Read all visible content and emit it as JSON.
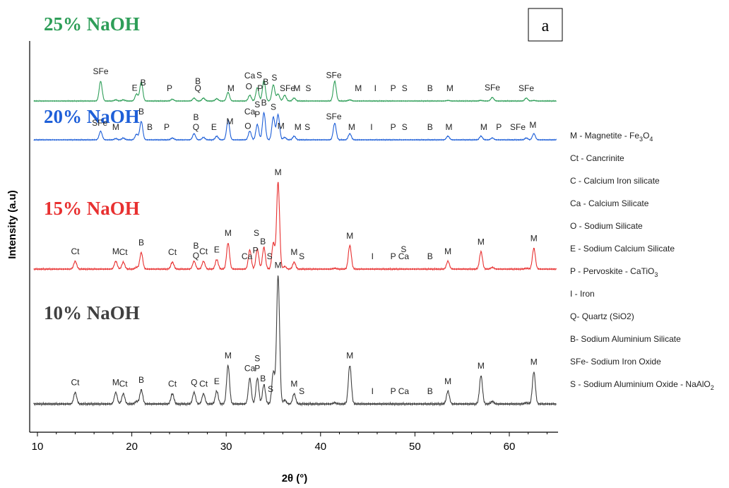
{
  "chart_data": {
    "type": "line",
    "panel_label": "a",
    "xlabel": "2θ (°)",
    "ylabel": "Intensity (a.u)",
    "xlim": [
      9.5,
      65
    ],
    "xticks": [
      10,
      20,
      30,
      40,
      50,
      60
    ],
    "grid": false,
    "legend_position": "right",
    "peak_positions": [
      14.0,
      16.7,
      18.3,
      19.1,
      20.5,
      21.0,
      24.3,
      26.6,
      27.6,
      29.0,
      30.2,
      32.5,
      33.3,
      34.0,
      35.0,
      35.5,
      36.2,
      37.2,
      41.5,
      43.1,
      53.5,
      57.0,
      58.2,
      61.8,
      62.6
    ],
    "series": [
      {
        "name": "10% NaOH",
        "color": "#404040",
        "baseline": 0.0,
        "peaks": [
          0.9,
          0.0,
          0.9,
          0.8,
          0.2,
          1.1,
          0.8,
          0.9,
          0.8,
          1.0,
          3.0,
          2.0,
          2.0,
          1.5,
          2.5,
          10.0,
          0.3,
          0.8,
          0.1,
          3.0,
          1.0,
          2.2,
          0.2,
          0.1,
          2.5
        ],
        "annotations": [
          {
            "text": "Ct",
            "x": 14.0
          },
          {
            "text": "M",
            "x": 18.3
          },
          {
            "text": "Ct",
            "x": 19.1
          },
          {
            "text": "B",
            "x": 21.0
          },
          {
            "text": "Ct",
            "x": 24.3
          },
          {
            "text": "Q",
            "x": 26.6
          },
          {
            "text": "Ct",
            "x": 27.6
          },
          {
            "text": "E",
            "x": 29.0
          },
          {
            "text": "M",
            "x": 30.2
          },
          {
            "text": "Ca",
            "x": 32.5
          },
          {
            "text": "P",
            "x": 33.3
          },
          {
            "text": "S",
            "x": 33.3
          },
          {
            "text": "B",
            "x": 33.9
          },
          {
            "text": "S",
            "x": 34.7
          },
          {
            "text": "M",
            "x": 35.5
          },
          {
            "text": "M",
            "x": 37.2
          },
          {
            "text": "S",
            "x": 38.0
          },
          {
            "text": "M",
            "x": 43.1
          },
          {
            "text": "I",
            "x": 45.5
          },
          {
            "text": "P",
            "x": 47.7
          },
          {
            "text": "Ca",
            "x": 48.8
          },
          {
            "text": "B",
            "x": 51.6
          },
          {
            "text": "M",
            "x": 53.5
          },
          {
            "text": "M",
            "x": 57.0
          },
          {
            "text": "M",
            "x": 62.6
          }
        ]
      },
      {
        "name": "15% NaOH",
        "color": "#e83030",
        "baseline": 1.0,
        "peaks": [
          0.9,
          0.0,
          0.9,
          0.8,
          0.2,
          1.9,
          0.8,
          0.9,
          0.9,
          1.1,
          3.0,
          2.2,
          2.3,
          2.5,
          3.0,
          10.0,
          0.3,
          0.8,
          0.1,
          2.7,
          0.9,
          2.0,
          0.2,
          0.1,
          2.4
        ],
        "annotations": [
          {
            "text": "Ct",
            "x": 14.0
          },
          {
            "text": "M",
            "x": 18.3
          },
          {
            "text": "Ct",
            "x": 19.1
          },
          {
            "text": "B",
            "x": 21.0
          },
          {
            "text": "Ct",
            "x": 24.3
          },
          {
            "text": "Q",
            "x": 26.8
          },
          {
            "text": "B",
            "x": 26.8
          },
          {
            "text": "Ct",
            "x": 27.6
          },
          {
            "text": "E",
            "x": 29.0
          },
          {
            "text": "M",
            "x": 30.2
          },
          {
            "text": "Ca",
            "x": 32.2
          },
          {
            "text": "P",
            "x": 33.1
          },
          {
            "text": "S",
            "x": 33.2
          },
          {
            "text": "B",
            "x": 33.9
          },
          {
            "text": "S",
            "x": 34.6
          },
          {
            "text": "M",
            "x": 35.5
          },
          {
            "text": "M",
            "x": 37.2
          },
          {
            "text": "S",
            "x": 38.0
          },
          {
            "text": "M",
            "x": 43.1
          },
          {
            "text": "I",
            "x": 45.5
          },
          {
            "text": "P",
            "x": 47.7
          },
          {
            "text": "Ca",
            "x": 48.8
          },
          {
            "text": "S",
            "x": 48.8
          },
          {
            "text": "B",
            "x": 51.6
          },
          {
            "text": "M",
            "x": 53.5
          },
          {
            "text": "M",
            "x": 57.0
          },
          {
            "text": "M",
            "x": 62.6
          }
        ]
      },
      {
        "name": "20% NaOH",
        "color": "#1e5fd8",
        "baseline": 2.0,
        "peaks": [
          0.0,
          1.4,
          0.2,
          0.3,
          0.9,
          3.0,
          0.3,
          1.0,
          0.4,
          0.6,
          3.2,
          1.4,
          2.5,
          4.4,
          3.7,
          4.1,
          0.4,
          0.6,
          2.7,
          1.0,
          0.6,
          0.6,
          0.3,
          0.3,
          1.0
        ],
        "annotations": [
          {
            "text": "SFe",
            "x": 16.6
          },
          {
            "text": "M",
            "x": 18.3
          },
          {
            "text": "B",
            "x": 21.0
          },
          {
            "text": "B",
            "x": 21.9
          },
          {
            "text": "P",
            "x": 23.7
          },
          {
            "text": "Q",
            "x": 26.8
          },
          {
            "text": "B",
            "x": 26.8
          },
          {
            "text": "E",
            "x": 28.7
          },
          {
            "text": "M",
            "x": 30.4
          },
          {
            "text": "O",
            "x": 32.3
          },
          {
            "text": "Ca",
            "x": 32.5
          },
          {
            "text": "P",
            "x": 33.3
          },
          {
            "text": "S",
            "x": 33.3
          },
          {
            "text": "B",
            "x": 34.0
          },
          {
            "text": "S",
            "x": 35.0
          },
          {
            "text": "M",
            "x": 35.8
          },
          {
            "text": "M",
            "x": 37.6
          },
          {
            "text": "S",
            "x": 38.6
          },
          {
            "text": "SFe",
            "x": 41.4
          },
          {
            "text": "M",
            "x": 43.3
          },
          {
            "text": "I",
            "x": 45.4
          },
          {
            "text": "P",
            "x": 47.7
          },
          {
            "text": "S",
            "x": 48.9
          },
          {
            "text": "B",
            "x": 51.6
          },
          {
            "text": "M",
            "x": 53.6
          },
          {
            "text": "M",
            "x": 57.3
          },
          {
            "text": "P",
            "x": 58.9
          },
          {
            "text": "SFe",
            "x": 60.9
          },
          {
            "text": "M",
            "x": 62.5
          }
        ]
      },
      {
        "name": "25% NaOH",
        "color": "#2e9e58",
        "baseline": 3.0,
        "peaks": [
          0.0,
          3.4,
          0.2,
          0.2,
          1.2,
          3.3,
          0.3,
          0.5,
          0.5,
          0.4,
          1.5,
          1.0,
          2.3,
          3.6,
          2.8,
          1.2,
          1.0,
          0.5,
          3.4,
          0.2,
          0.1,
          0.1,
          0.6,
          0.5,
          0.1
        ],
        "annotations": [
          {
            "text": "SFe",
            "x": 16.7
          },
          {
            "text": "E",
            "x": 20.3
          },
          {
            "text": "B",
            "x": 21.2
          },
          {
            "text": "P",
            "x": 24.0
          },
          {
            "text": "Q",
            "x": 27.0
          },
          {
            "text": "B",
            "x": 27.0
          },
          {
            "text": "M",
            "x": 30.5
          },
          {
            "text": "O",
            "x": 32.4
          },
          {
            "text": "Ca",
            "x": 32.5
          },
          {
            "text": "P",
            "x": 33.6
          },
          {
            "text": "S",
            "x": 33.5
          },
          {
            "text": "B",
            "x": 34.2
          },
          {
            "text": "S",
            "x": 35.1
          },
          {
            "text": "SFe",
            "x": 36.5
          },
          {
            "text": "M",
            "x": 37.5
          },
          {
            "text": "S",
            "x": 38.7
          },
          {
            "text": "SFe",
            "x": 41.4
          },
          {
            "text": "M",
            "x": 44.0
          },
          {
            "text": "I",
            "x": 45.8
          },
          {
            "text": "P",
            "x": 47.7
          },
          {
            "text": "S",
            "x": 48.9
          },
          {
            "text": "B",
            "x": 51.6
          },
          {
            "text": "M",
            "x": 53.7
          },
          {
            "text": "SFe",
            "x": 58.2
          },
          {
            "text": "SFe",
            "x": 61.8
          }
        ]
      }
    ],
    "legend": [
      {
        "code": "M",
        "sep": " -  ",
        "name": "Magnetite - Fe",
        "sub": "3",
        "name2": "O",
        "sub2": "4"
      },
      {
        "code": "Ct",
        "sep": " - ",
        "name": "Cancrinite"
      },
      {
        "code": "C",
        "sep": "  - ",
        "name": "Calcium Iron silicate"
      },
      {
        "code": "Ca",
        "sep": " - ",
        "name": "Calcium Silicate"
      },
      {
        "code": "O",
        "sep": " - ",
        "name": "Sodium Silicate"
      },
      {
        "code": "E",
        "sep": " - ",
        "name": "Sodium Calcium Silicate"
      },
      {
        "code": "P",
        "sep": "  -  ",
        "name": "Pervoskite - CaTiO",
        "sub": "3"
      },
      {
        "code": "I",
        "sep": " - ",
        "name": "Iron"
      },
      {
        "code": "Q",
        "sep": "- ",
        "name": "Quartz (SiO2)"
      },
      {
        "code": "B",
        "sep": "- ",
        "name": "Sodium Aluminium Silicate"
      },
      {
        "code": "SFe",
        "sep": "- ",
        "name": "Sodium Iron Oxide"
      },
      {
        "code": "S",
        "sep": " -  ",
        "name": "Sodium  Aluminium Oxide  - NaAlO",
        "sub": "2"
      }
    ]
  }
}
